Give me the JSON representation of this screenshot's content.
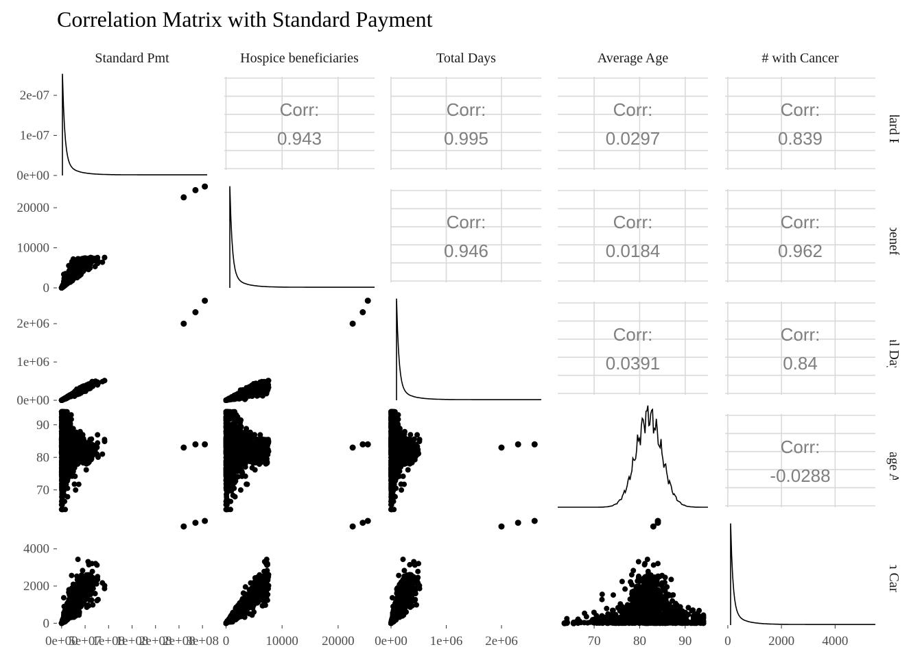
{
  "chart_data": {
    "type": "scatter",
    "title": "Correlation Matrix with Standard Payment",
    "variables": [
      "Standard Pmt",
      "Hospice beneficiaries",
      "Total Days",
      "Average Age",
      "# with Cancer"
    ],
    "corr_label": "Corr:",
    "correlations": [
      {
        "row": 0,
        "col": 1,
        "value": "0.943"
      },
      {
        "row": 0,
        "col": 2,
        "value": "0.995"
      },
      {
        "row": 0,
        "col": 3,
        "value": "0.0297"
      },
      {
        "row": 0,
        "col": 4,
        "value": "0.839"
      },
      {
        "row": 1,
        "col": 2,
        "value": "0.946"
      },
      {
        "row": 1,
        "col": 3,
        "value": "0.0184"
      },
      {
        "row": 1,
        "col": 4,
        "value": "0.962"
      },
      {
        "row": 2,
        "col": 3,
        "value": "0.0391"
      },
      {
        "row": 2,
        "col": 4,
        "value": "0.84"
      },
      {
        "row": 3,
        "col": 4,
        "value": "-0.0288"
      }
    ],
    "x_axes": [
      {
        "range": [
          -10000000.0,
          310000000.0
        ],
        "ticks": [
          0,
          50000000.0,
          100000000.0,
          150000000.0,
          200000000.0,
          250000000.0,
          300000000.0
        ],
        "labels": [
          "0e+00",
          "5e+07",
          "1e+08",
          "1e+08",
          "2e+08",
          "2e+08",
          "3e+08"
        ]
      },
      {
        "range": [
          -300,
          26500
        ],
        "ticks": [
          0,
          10000,
          20000
        ],
        "labels": [
          "0",
          "10000",
          "20000"
        ]
      },
      {
        "range": [
          0,
          2720000
        ],
        "ticks": [
          0,
          1000000,
          2000000
        ],
        "labels": [
          "0e+00",
          "1e+06",
          "2e+06"
        ]
      },
      {
        "range": [
          62,
          95
        ],
        "ticks": [
          70,
          80,
          90
        ],
        "labels": [
          "70",
          "80",
          "90"
        ]
      },
      {
        "range": [
          -100,
          5500
        ],
        "ticks": [
          0,
          2000,
          4000
        ],
        "labels": [
          "0",
          "2000",
          "4000"
        ]
      }
    ],
    "y_axes": [
      {
        "range": [
          0,
          2.6e-07
        ],
        "ticks": [
          0,
          1e-07,
          2e-07
        ],
        "labels": [
          "0e+00",
          "1e-07",
          "2e-07"
        ]
      },
      {
        "range": [
          0,
          26000
        ],
        "ticks": [
          0,
          10000,
          20000
        ],
        "labels": [
          "0",
          "10000",
          "20000"
        ]
      },
      {
        "range": [
          0,
          2720000
        ],
        "ticks": [
          0,
          1000000,
          2000000
        ],
        "labels": [
          "0e+00",
          "1e+06",
          "2e+06"
        ]
      },
      {
        "range": [
          63,
          95
        ],
        "ticks": [
          70,
          80,
          90
        ],
        "labels": [
          "70",
          "80",
          "90"
        ]
      },
      {
        "range": [
          -100,
          5500
        ],
        "ticks": [
          0,
          2000,
          4000
        ],
        "labels": [
          "0",
          "2000",
          "4000"
        ]
      }
    ],
    "outliers": [
      {
        "pmt": 260000000.0,
        "bene": 22600,
        "days": 2000000,
        "age": 83,
        "cancer": 5200
      },
      {
        "pmt": 285000000.0,
        "bene": 24400,
        "days": 2300000,
        "age": 84,
        "cancer": 5400
      },
      {
        "pmt": 305000000.0,
        "bene": 25300,
        "days": 2600000,
        "age": 84,
        "cancer": 5500
      }
    ]
  }
}
